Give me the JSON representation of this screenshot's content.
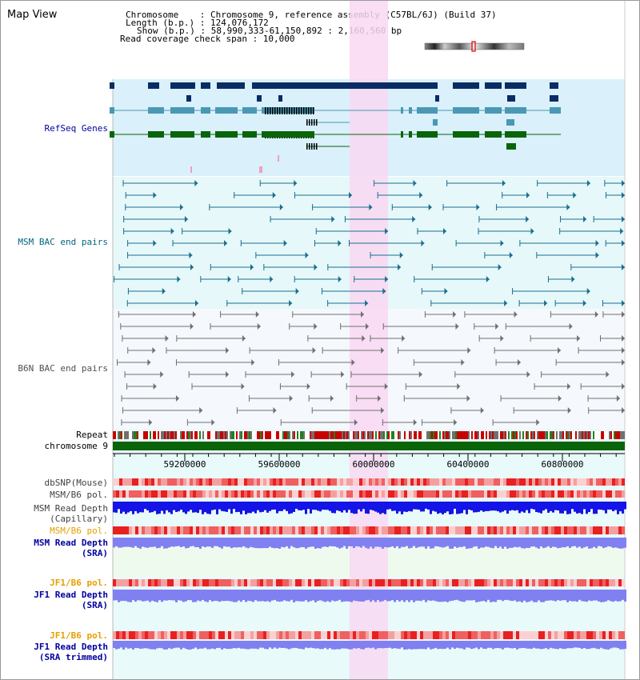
{
  "title": "Map View",
  "info": {
    "line1": "Chromosome    : Chromosome 9, reference assembly (C57BL/6J) (Build 37)",
    "line2": "Length (b.p.) : 124,076,172",
    "line3": "Show (b.p.) : 58,990,333-61,150,892 : 2,160,560 bp",
    "line4": "Read coverage check span : 10,000"
  },
  "tracks": {
    "refseq": "RefSeq Genes",
    "msm_bac": "MSM BAC end pairs",
    "b6n_bac": "B6N BAC end pairs",
    "repeat": "Repeat",
    "chromosome": "chromosome 9",
    "dbsnp": "dbSNP(Mouse)",
    "msm_b6_pol_1": "MSM/B6 pol.",
    "msm_depth_cap_1": "MSM Read Depth",
    "msm_depth_cap_2": "(Capillary)",
    "msm_b6_pol_2": "MSM/B6 pol.",
    "msm_depth_sra_1": "MSM Read Depth",
    "msm_depth_sra_2": "(SRA)",
    "jf1_pol_1": "JF1/B6 pol.",
    "jf1_depth_1": "JF1 Read Depth",
    "jf1_depth_2": "(SRA)",
    "jf1_pol_2": "JF1/B6 pol.",
    "jf1_trim_1": "JF1 Read Depth",
    "jf1_trim_2": "(SRA trimmed)"
  },
  "ruler": {
    "ticks": [
      "59200000",
      "59600000",
      "60000000",
      "60400000",
      "60800000"
    ]
  },
  "colors": {
    "refseq_bg": "#daf0fa",
    "msm_bg": "#e6f8fa",
    "b6n_bg": "#f5f8fc",
    "highlight": "#f8d8f2",
    "gene_navy": "#0a2c64",
    "gene_teal": "#4a98b4",
    "gene_green": "#0a640a",
    "msm_line": "#1a6e8c",
    "b6n_line": "#707070",
    "depth_blue": "#1414e6",
    "depth_lav": "#8080f0",
    "label_navy": "#0000a0",
    "label_teal": "#006680",
    "label_orange": "#e6a000"
  }
}
